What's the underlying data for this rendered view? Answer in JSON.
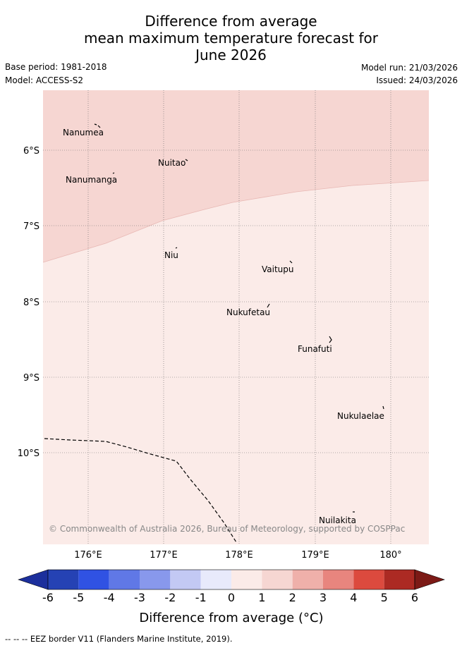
{
  "title": {
    "line1": "Difference from average",
    "line2": "mean maximum temperature forecast for",
    "line3": "June 2026"
  },
  "meta": {
    "base_period": "Base period: 1981-2018",
    "model": "Model: ACCESS-S2",
    "model_run": "Model run: 21/03/2026",
    "issued": "Issued: 24/03/2026"
  },
  "map": {
    "lat_ticks": [
      "6°S",
      "7°S",
      "8°S",
      "9°S",
      "10°S"
    ],
    "lon_ticks": [
      "176°E",
      "177°E",
      "178°E",
      "179°E",
      "180°"
    ],
    "islands": [
      {
        "name": "Nanumea",
        "lon": 176.15,
        "lat": -5.68
      },
      {
        "name": "Nuitao",
        "lon": 177.3,
        "lat": -6.12
      },
      {
        "name": "Nanumanga",
        "lon": 176.33,
        "lat": -6.3
      },
      {
        "name": "Niu",
        "lon": 177.15,
        "lat": -7.3
      },
      {
        "name": "Vaitupu",
        "lon": 178.7,
        "lat": -7.48
      },
      {
        "name": "Nukufetau",
        "lon": 178.38,
        "lat": -8.03
      },
      {
        "name": "Funafuti",
        "lon": 179.2,
        "lat": -8.52
      },
      {
        "name": "Nukulaelae",
        "lon": 179.85,
        "lat": -9.38
      },
      {
        "name": "Nuilakita",
        "lon": 179.53,
        "lat": -10.78
      }
    ],
    "regions": [
      {
        "category": "1 to 2",
        "color": "#f6d6d2"
      },
      {
        "category": "0 to 1",
        "color": "#fbebe8"
      }
    ],
    "copyright": "© Commonwealth of Australia 2026, Bureau of Meteorology, supported by COSPPac"
  },
  "colorbar": {
    "ticks": [
      "-6",
      "-5",
      "-4",
      "-3",
      "-2",
      "-1",
      "0",
      "1",
      "2",
      "3",
      "4",
      "5",
      "6"
    ],
    "colors": [
      "#1c2f9c",
      "#2542b4",
      "#3052e3",
      "#6078e6",
      "#8898ec",
      "#c3c9f4",
      "#e8eafb",
      "#fbebe8",
      "#f6d6d2",
      "#efb0aa",
      "#e8857e",
      "#dc4a3e",
      "#ac2a23",
      "#7c1a16"
    ],
    "title": "Difference from average (°C)"
  },
  "footnote": "-- -- -- EEZ border V11 (Flanders Marine Institute, 2019)."
}
